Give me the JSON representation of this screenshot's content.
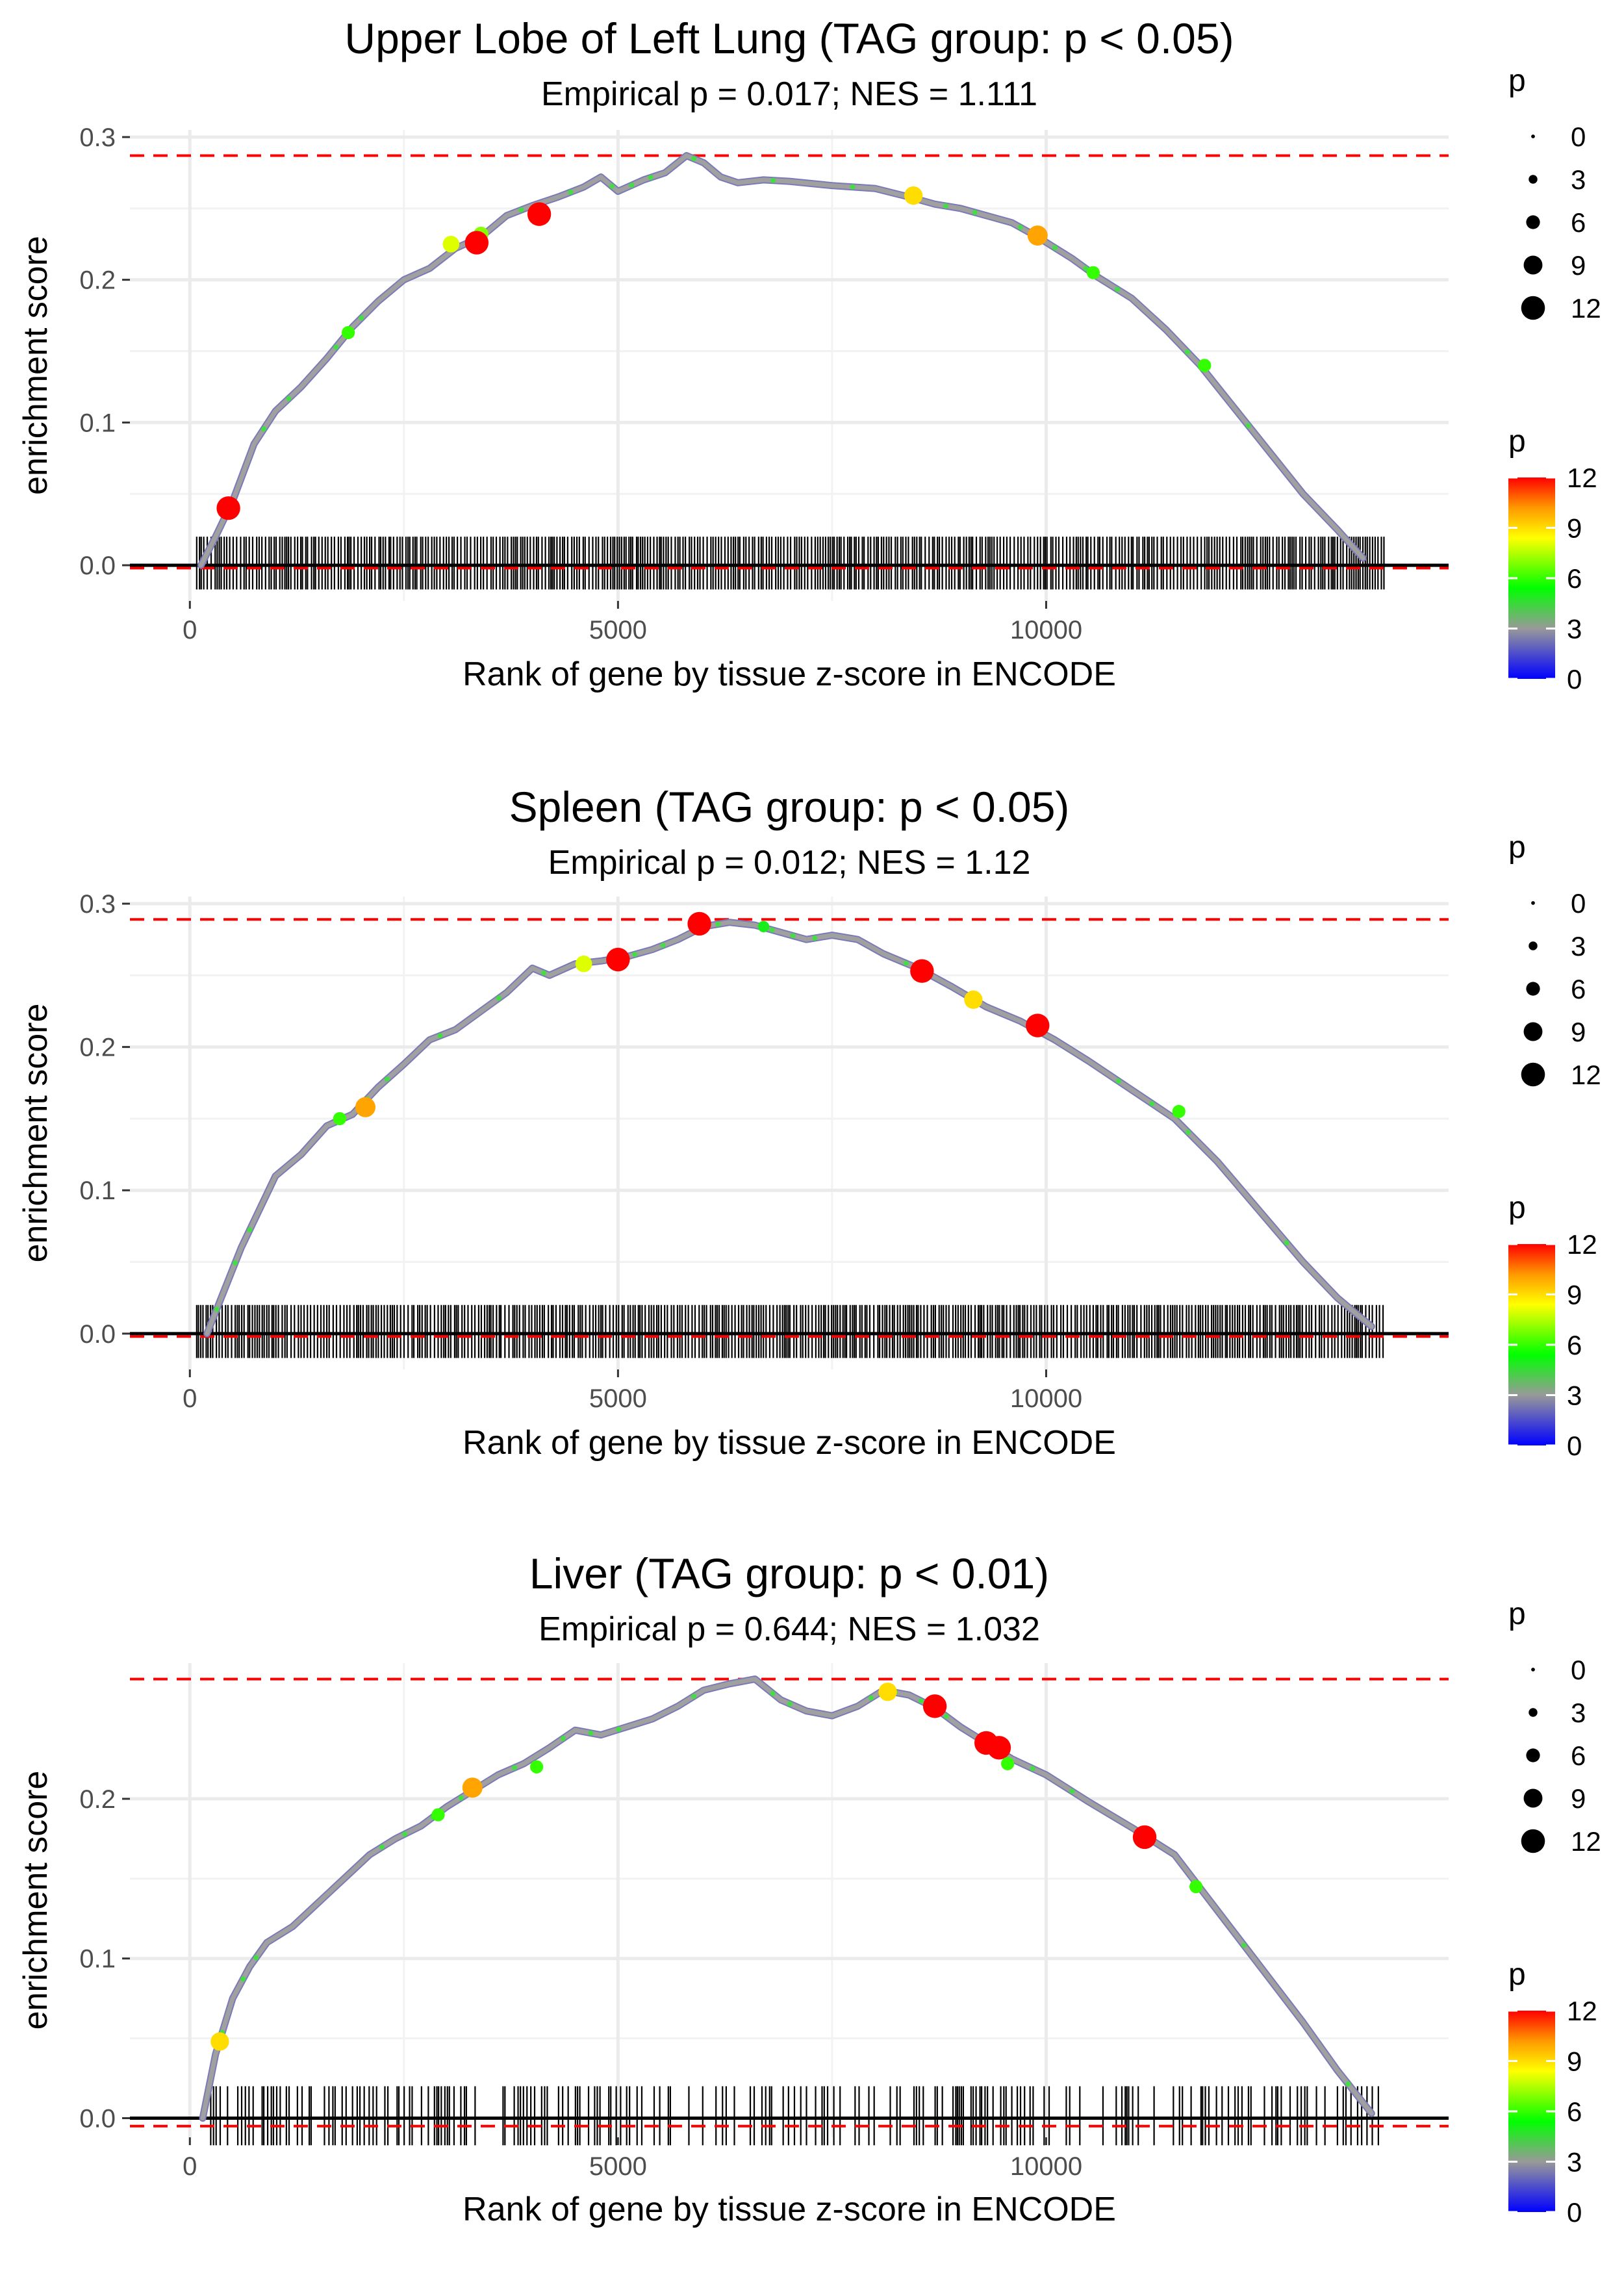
{
  "chart_data": [
    {
      "type": "line",
      "title": "Upper Lobe of Left Lung (TAG group: p < 0.05)",
      "subtitle": "Empirical p = 0.017; NES = 1.111",
      "xlabel": "Rank of gene by tissue z-score in ENCODE",
      "ylabel": "enrichment score",
      "xlim": [
        -700,
        14700
      ],
      "ylim": [
        -0.025,
        0.305
      ],
      "x_ticks": [
        0,
        5000,
        10000
      ],
      "x_tick_labels": [
        "0",
        "5000",
        "10000"
      ],
      "y_ticks": [
        0.0,
        0.1,
        0.2,
        0.3
      ],
      "y_tick_labels": [
        "0.0",
        "0.1",
        "0.2",
        "0.3"
      ],
      "max_es_line": 0.287,
      "min_es_line": -0.002,
      "rug_density": 1.0,
      "rug_xrange": [
        80,
        13950
      ],
      "curve": [
        [
          130,
          0
        ],
        [
          300,
          0.02
        ],
        [
          500,
          0.045
        ],
        [
          750,
          0.085
        ],
        [
          1000,
          0.108
        ],
        [
          1300,
          0.125
        ],
        [
          1600,
          0.145
        ],
        [
          1900,
          0.167
        ],
        [
          2200,
          0.185
        ],
        [
          2500,
          0.2
        ],
        [
          2800,
          0.208
        ],
        [
          3100,
          0.222
        ],
        [
          3400,
          0.23
        ],
        [
          3700,
          0.245
        ],
        [
          4000,
          0.252
        ],
        [
          4300,
          0.258
        ],
        [
          4600,
          0.265
        ],
        [
          4800,
          0.272
        ],
        [
          5000,
          0.262
        ],
        [
          5300,
          0.27
        ],
        [
          5550,
          0.275
        ],
        [
          5800,
          0.287
        ],
        [
          6000,
          0.282
        ],
        [
          6200,
          0.272
        ],
        [
          6400,
          0.268
        ],
        [
          6700,
          0.27
        ],
        [
          7000,
          0.269
        ],
        [
          7500,
          0.266
        ],
        [
          8000,
          0.264
        ],
        [
          8400,
          0.258
        ],
        [
          8700,
          0.253
        ],
        [
          9000,
          0.25
        ],
        [
          9300,
          0.245
        ],
        [
          9600,
          0.24
        ],
        [
          9900,
          0.23
        ],
        [
          10300,
          0.215
        ],
        [
          10600,
          0.202
        ],
        [
          11000,
          0.187
        ],
        [
          11400,
          0.165
        ],
        [
          11800,
          0.14
        ],
        [
          12200,
          0.11
        ],
        [
          12600,
          0.08
        ],
        [
          13000,
          0.05
        ],
        [
          13400,
          0.025
        ],
        [
          13700,
          0.005
        ]
      ],
      "highlights": [
        {
          "x": 450,
          "y": 0.04,
          "p": 12
        },
        {
          "x": 1850,
          "y": 0.163,
          "p": 6
        },
        {
          "x": 3050,
          "y": 0.225,
          "p": 8
        },
        {
          "x": 3400,
          "y": 0.232,
          "p": 7
        },
        {
          "x": 3350,
          "y": 0.226,
          "p": 12
        },
        {
          "x": 4080,
          "y": 0.246,
          "p": 12
        },
        {
          "x": 8450,
          "y": 0.259,
          "p": 9
        },
        {
          "x": 9900,
          "y": 0.231,
          "p": 10
        },
        {
          "x": 10550,
          "y": 0.205,
          "p": 6
        },
        {
          "x": 11850,
          "y": 0.14,
          "p": 6
        }
      ],
      "size_legend": {
        "title": "p",
        "values": [
          0,
          3,
          6,
          9,
          12
        ]
      },
      "color_legend": {
        "title": "p",
        "ticks": [
          12,
          9,
          6,
          3,
          0
        ]
      }
    },
    {
      "type": "line",
      "title": "Spleen (TAG group: p < 0.05)",
      "subtitle": "Empirical p = 0.012; NES = 1.12",
      "xlabel": "Rank of gene by tissue z-score in ENCODE",
      "ylabel": "enrichment score",
      "xlim": [
        -700,
        14700
      ],
      "ylim": [
        -0.025,
        0.305
      ],
      "x_ticks": [
        0,
        5000,
        10000
      ],
      "x_tick_labels": [
        "0",
        "5000",
        "10000"
      ],
      "y_ticks": [
        0.0,
        0.1,
        0.2,
        0.3
      ],
      "y_tick_labels": [
        "0.0",
        "0.1",
        "0.2",
        "0.3"
      ],
      "max_es_line": 0.289,
      "min_es_line": -0.002,
      "rug_density": 1.0,
      "rug_xrange": [
        80,
        13950
      ],
      "curve": [
        [
          200,
          0
        ],
        [
          400,
          0.03
        ],
        [
          600,
          0.06
        ],
        [
          800,
          0.085
        ],
        [
          1000,
          0.11
        ],
        [
          1300,
          0.125
        ],
        [
          1600,
          0.145
        ],
        [
          1900,
          0.153
        ],
        [
          2200,
          0.172
        ],
        [
          2500,
          0.188
        ],
        [
          2800,
          0.205
        ],
        [
          3100,
          0.212
        ],
        [
          3400,
          0.225
        ],
        [
          3700,
          0.238
        ],
        [
          4000,
          0.255
        ],
        [
          4200,
          0.25
        ],
        [
          4500,
          0.258
        ],
        [
          4800,
          0.26
        ],
        [
          5100,
          0.263
        ],
        [
          5400,
          0.268
        ],
        [
          5700,
          0.275
        ],
        [
          6000,
          0.284
        ],
        [
          6300,
          0.287
        ],
        [
          6600,
          0.285
        ],
        [
          6900,
          0.28
        ],
        [
          7200,
          0.275
        ],
        [
          7500,
          0.278
        ],
        [
          7800,
          0.275
        ],
        [
          8100,
          0.265
        ],
        [
          8500,
          0.255
        ],
        [
          8900,
          0.242
        ],
        [
          9300,
          0.228
        ],
        [
          9700,
          0.218
        ],
        [
          10100,
          0.205
        ],
        [
          10500,
          0.19
        ],
        [
          11000,
          0.17
        ],
        [
          11500,
          0.15
        ],
        [
          12000,
          0.12
        ],
        [
          12500,
          0.085
        ],
        [
          13000,
          0.05
        ],
        [
          13400,
          0.025
        ],
        [
          13800,
          0.005
        ]
      ],
      "highlights": [
        {
          "x": 1750,
          "y": 0.15,
          "p": 6
        },
        {
          "x": 2050,
          "y": 0.158,
          "p": 10
        },
        {
          "x": 4600,
          "y": 0.258,
          "p": 8
        },
        {
          "x": 5000,
          "y": 0.261,
          "p": 12
        },
        {
          "x": 5950,
          "y": 0.286,
          "p": 12
        },
        {
          "x": 6700,
          "y": 0.284,
          "p": 5
        },
        {
          "x": 8550,
          "y": 0.253,
          "p": 12
        },
        {
          "x": 9150,
          "y": 0.233,
          "p": 9
        },
        {
          "x": 9900,
          "y": 0.215,
          "p": 12
        },
        {
          "x": 11550,
          "y": 0.155,
          "p": 6
        }
      ],
      "size_legend": {
        "title": "p",
        "values": [
          0,
          3,
          6,
          9,
          12
        ]
      },
      "color_legend": {
        "title": "p",
        "ticks": [
          12,
          9,
          6,
          3,
          0
        ]
      }
    },
    {
      "type": "line",
      "title": "Liver (TAG group: p < 0.01)",
      "subtitle": "Empirical p = 0.644; NES = 1.032",
      "xlabel": "Rank of gene by tissue z-score in ENCODE",
      "ylabel": "enrichment score",
      "xlim": [
        -700,
        14700
      ],
      "ylim": [
        -0.012,
        0.285
      ],
      "x_ticks": [
        0,
        5000,
        10000
      ],
      "x_tick_labels": [
        "0",
        "5000",
        "10000"
      ],
      "y_ticks": [
        0.0,
        0.1,
        0.2
      ],
      "y_tick_labels": [
        "0.0",
        "0.1",
        "0.2"
      ],
      "max_es_line": 0.275,
      "min_es_line": -0.005,
      "rug_density": 0.45,
      "rug_xrange": [
        80,
        13950
      ],
      "curve": [
        [
          150,
          0
        ],
        [
          300,
          0.04
        ],
        [
          500,
          0.075
        ],
        [
          700,
          0.095
        ],
        [
          900,
          0.11
        ],
        [
          1200,
          0.12
        ],
        [
          1500,
          0.135
        ],
        [
          1800,
          0.15
        ],
        [
          2100,
          0.165
        ],
        [
          2400,
          0.175
        ],
        [
          2700,
          0.183
        ],
        [
          3000,
          0.195
        ],
        [
          3300,
          0.205
        ],
        [
          3600,
          0.215
        ],
        [
          3900,
          0.222
        ],
        [
          4200,
          0.232
        ],
        [
          4500,
          0.243
        ],
        [
          4800,
          0.24
        ],
        [
          5100,
          0.245
        ],
        [
          5400,
          0.25
        ],
        [
          5700,
          0.258
        ],
        [
          6000,
          0.268
        ],
        [
          6300,
          0.272
        ],
        [
          6600,
          0.275
        ],
        [
          6900,
          0.262
        ],
        [
          7200,
          0.255
        ],
        [
          7500,
          0.252
        ],
        [
          7800,
          0.258
        ],
        [
          8100,
          0.268
        ],
        [
          8400,
          0.265
        ],
        [
          8700,
          0.257
        ],
        [
          9000,
          0.245
        ],
        [
          9300,
          0.235
        ],
        [
          9600,
          0.225
        ],
        [
          10000,
          0.215
        ],
        [
          10500,
          0.198
        ],
        [
          11000,
          0.182
        ],
        [
          11500,
          0.165
        ],
        [
          12000,
          0.13
        ],
        [
          12500,
          0.095
        ],
        [
          13000,
          0.06
        ],
        [
          13400,
          0.03
        ],
        [
          13800,
          0.003
        ]
      ],
      "highlights": [
        {
          "x": 350,
          "y": 0.048,
          "p": 9
        },
        {
          "x": 2900,
          "y": 0.19,
          "p": 6
        },
        {
          "x": 3300,
          "y": 0.207,
          "p": 10
        },
        {
          "x": 4050,
          "y": 0.22,
          "p": 6
        },
        {
          "x": 8150,
          "y": 0.267,
          "p": 9
        },
        {
          "x": 8700,
          "y": 0.258,
          "p": 12
        },
        {
          "x": 9300,
          "y": 0.235,
          "p": 12
        },
        {
          "x": 9450,
          "y": 0.232,
          "p": 12
        },
        {
          "x": 9550,
          "y": 0.222,
          "p": 6
        },
        {
          "x": 11150,
          "y": 0.176,
          "p": 12
        },
        {
          "x": 11750,
          "y": 0.145,
          "p": 6
        }
      ],
      "size_legend": {
        "title": "p",
        "values": [
          0,
          3,
          6,
          9,
          12
        ]
      },
      "color_legend": {
        "title": "p",
        "ticks": [
          12,
          9,
          6,
          3,
          0
        ]
      }
    }
  ]
}
